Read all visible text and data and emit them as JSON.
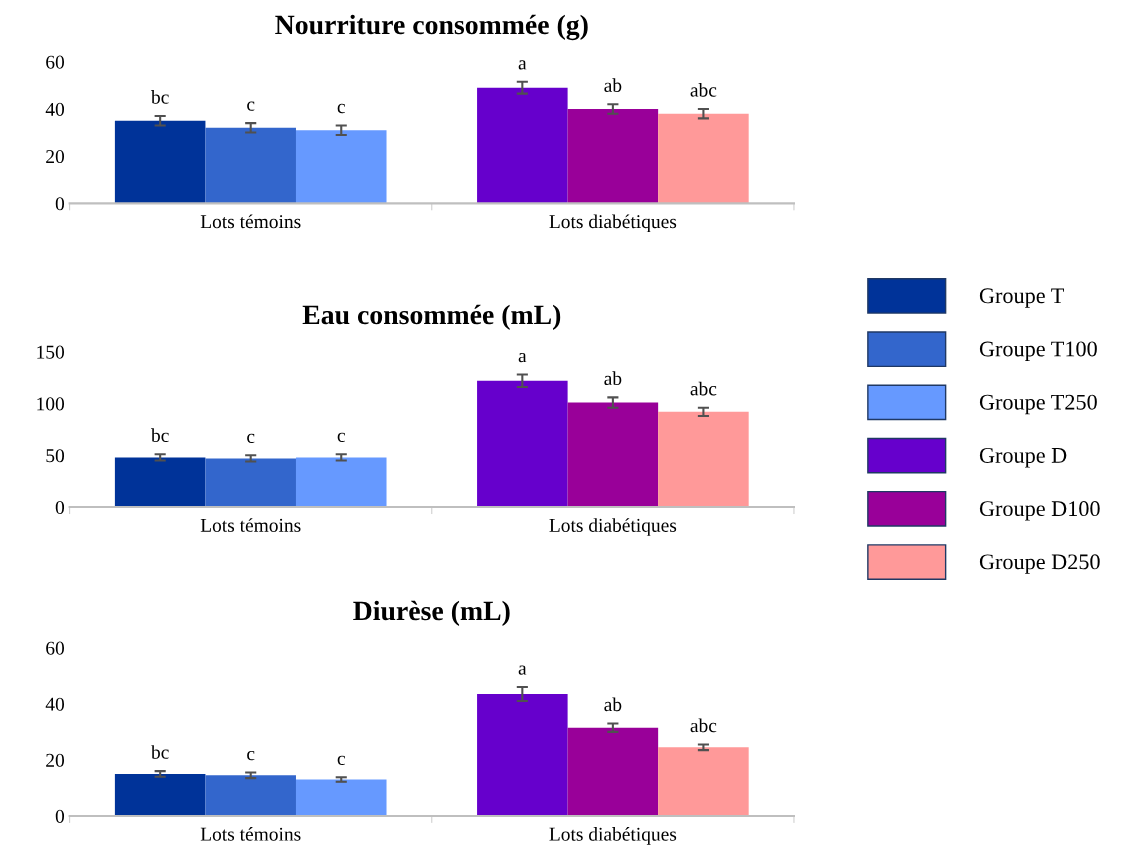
{
  "chart_data": [
    {
      "type": "bar",
      "title": "Nourriture consommée (g)",
      "categories": [
        "Lots témoins",
        "Lots diabétiques"
      ],
      "ylim": [
        0,
        60
      ],
      "yticks": [
        0,
        20,
        40,
        60
      ],
      "grid": false,
      "legend": false,
      "series": [
        {
          "color": "#003399",
          "values": [
            35,
            null
          ],
          "errors": [
            2,
            null
          ],
          "value_labels": [
            "bc",
            null
          ]
        },
        {
          "color": "#3366cc",
          "values": [
            32,
            null
          ],
          "errors": [
            2,
            null
          ],
          "value_labels": [
            "c",
            null
          ]
        },
        {
          "color": "#6699ff",
          "values": [
            31,
            null
          ],
          "errors": [
            2,
            null
          ],
          "value_labels": [
            "c",
            null
          ]
        },
        {
          "color": "#6600cc",
          "values": [
            null,
            49
          ],
          "errors": [
            null,
            2.5
          ],
          "value_labels": [
            null,
            "a"
          ]
        },
        {
          "color": "#990099",
          "values": [
            null,
            40
          ],
          "errors": [
            null,
            2
          ],
          "value_labels": [
            null,
            "ab"
          ]
        },
        {
          "color": "#ff9999",
          "values": [
            null,
            38
          ],
          "errors": [
            null,
            2
          ],
          "value_labels": [
            null,
            "abc"
          ]
        }
      ]
    },
    {
      "type": "bar",
      "title": "Eau consommée (mL)",
      "categories": [
        "Lots témoins",
        "Lots diabétiques"
      ],
      "ylim": [
        0,
        150
      ],
      "yticks": [
        0,
        50,
        100,
        150
      ],
      "grid": false,
      "legend": "right",
      "series": [
        {
          "name": "Groupe T",
          "color": "#003399",
          "values": [
            48,
            null
          ],
          "errors": [
            3,
            null
          ],
          "value_labels": [
            "bc",
            null
          ]
        },
        {
          "name": "Groupe T100",
          "color": "#3366cc",
          "values": [
            47,
            null
          ],
          "errors": [
            3,
            null
          ],
          "value_labels": [
            "c",
            null
          ]
        },
        {
          "name": "Groupe T250",
          "color": "#6699ff",
          "values": [
            48,
            null
          ],
          "errors": [
            3,
            null
          ],
          "value_labels": [
            "c",
            null
          ]
        },
        {
          "name": "Groupe D",
          "color": "#6600cc",
          "values": [
            null,
            122
          ],
          "errors": [
            null,
            6
          ],
          "value_labels": [
            null,
            "a"
          ]
        },
        {
          "name": "Groupe D100",
          "color": "#990099",
          "values": [
            null,
            101
          ],
          "errors": [
            null,
            5
          ],
          "value_labels": [
            null,
            "ab"
          ]
        },
        {
          "name": "Groupe D250",
          "color": "#ff9999",
          "values": [
            null,
            92
          ],
          "errors": [
            null,
            4
          ],
          "value_labels": [
            null,
            "abc"
          ]
        }
      ]
    },
    {
      "type": "bar",
      "title": "Diurèse (mL)",
      "categories": [
        "Lots témoins",
        "Lots diabétiques"
      ],
      "ylim": [
        0,
        60
      ],
      "yticks": [
        0,
        20,
        40,
        60
      ],
      "grid": false,
      "legend": false,
      "series": [
        {
          "color": "#003399",
          "values": [
            15,
            null
          ],
          "errors": [
            1,
            null
          ],
          "value_labels": [
            "bc",
            null
          ]
        },
        {
          "color": "#3366cc",
          "values": [
            14.5,
            null
          ],
          "errors": [
            1,
            null
          ],
          "value_labels": [
            "c",
            null
          ]
        },
        {
          "color": "#6699ff",
          "values": [
            13,
            null
          ],
          "errors": [
            0.8,
            null
          ],
          "value_labels": [
            "c",
            null
          ]
        },
        {
          "color": "#6600cc",
          "values": [
            null,
            43.5
          ],
          "errors": [
            null,
            2.5
          ],
          "value_labels": [
            null,
            "a"
          ]
        },
        {
          "color": "#990099",
          "values": [
            null,
            31.5
          ],
          "errors": [
            null,
            1.5
          ],
          "value_labels": [
            null,
            "ab"
          ]
        },
        {
          "color": "#ff9999",
          "values": [
            null,
            24.5
          ],
          "errors": [
            null,
            1
          ],
          "value_labels": [
            null,
            "abc"
          ]
        }
      ]
    }
  ]
}
